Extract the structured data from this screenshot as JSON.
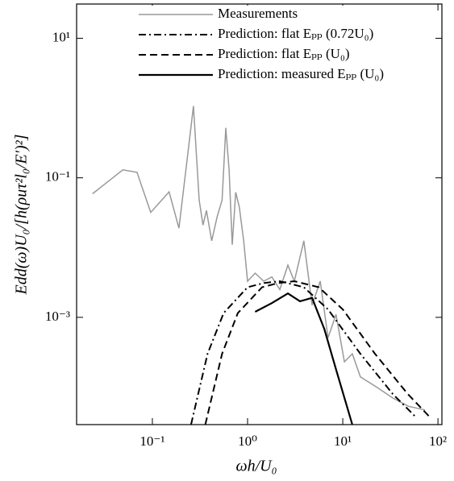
{
  "chart_data": {
    "type": "line",
    "x_label": "ωh/U₀",
    "y_label": "Edd(ω)U₀/[h(ρuτ²l₀/E′)²]",
    "xlog": true,
    "ylog": true,
    "xlim": [
      0.016,
      110
    ],
    "ylim": [
      2.9e-05,
      31
    ],
    "xticks": [
      {
        "value": 0.1,
        "label": "10⁻¹"
      },
      {
        "value": 1,
        "label": "10⁰"
      },
      {
        "value": 10,
        "label": "10¹"
      },
      {
        "value": 100,
        "label": "10²"
      }
    ],
    "yticks": [
      {
        "value": 0.001,
        "label": "10⁻³"
      },
      {
        "value": 0.1,
        "label": "10⁻¹"
      },
      {
        "value": 10,
        "label": "10¹"
      }
    ],
    "legend": "upper center",
    "series": [
      {
        "name": "Measurements",
        "color": "#999999",
        "dash": "solid",
        "width": 1.5,
        "x": [
          0.0235,
          0.049,
          0.069,
          0.096,
          0.15,
          0.19,
          0.24,
          0.27,
          0.31,
          0.34,
          0.37,
          0.42,
          0.48,
          0.54,
          0.59,
          0.64,
          0.69,
          0.75,
          0.82,
          0.91,
          1.0,
          1.2,
          1.48,
          1.8,
          2.18,
          2.65,
          3.1,
          3.9,
          4.76,
          5.8,
          7.0,
          8.5,
          10.4,
          12.6,
          15.3,
          22.7,
          33.4,
          49,
          73
        ],
        "values": [
          0.059,
          0.13,
          0.12,
          0.032,
          0.063,
          0.019,
          0.27,
          1.07,
          0.048,
          0.021,
          0.034,
          0.0125,
          0.028,
          0.048,
          0.52,
          0.13,
          0.011,
          0.062,
          0.038,
          0.0125,
          0.0033,
          0.0043,
          0.0033,
          0.0038,
          0.0025,
          0.0056,
          0.0033,
          0.0125,
          0.0015,
          0.0033,
          0.00051,
          0.0011,
          0.00023,
          0.0003,
          0.00014,
          0.0001,
          7e-05,
          5.3e-05,
          4.7e-05
        ]
      },
      {
        "name": "Prediction: flat Eₚₚ (0.72U₀)",
        "color": "#000000",
        "dash": "dashdot",
        "width": 2,
        "x": [
          0.255,
          0.38,
          0.56,
          1.0,
          1.48,
          2.18,
          3.9,
          7.0,
          15.3,
          33.4,
          60
        ],
        "values": [
          2.9e-05,
          0.0003,
          0.00115,
          0.0027,
          0.0031,
          0.0033,
          0.0027,
          0.0013,
          0.0003,
          8e-05,
          3.6e-05
        ]
      },
      {
        "name": "Prediction: flat Eₚₚ (U₀)",
        "color": "#000000",
        "dash": "dashed",
        "width": 2,
        "x": [
          0.36,
          0.54,
          0.79,
          1.42,
          2.1,
          3.1,
          5.6,
          10,
          21.8,
          48,
          84
        ],
        "values": [
          2.9e-05,
          0.0003,
          0.00115,
          0.0027,
          0.0031,
          0.0033,
          0.0027,
          0.0013,
          0.0003,
          8e-05,
          3.6e-05
        ]
      },
      {
        "name": "Prediction: measured Eₚₚ (U₀)",
        "color": "#000000",
        "dash": "solid",
        "width": 2.2,
        "x": [
          1.2,
          1.8,
          2.65,
          3.55,
          4.76,
          6.4,
          8.5,
          12.6
        ],
        "values": [
          0.0012,
          0.0016,
          0.0022,
          0.0017,
          0.0019,
          0.00068,
          0.00018,
          2.9e-05
        ]
      }
    ]
  }
}
